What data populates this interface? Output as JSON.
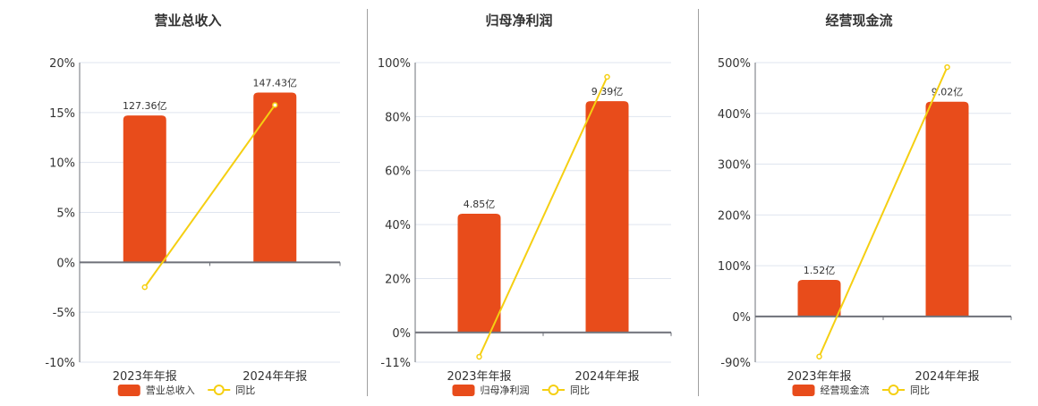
{
  "colors": {
    "bar": "#e84c1b",
    "line": "#f5cf12",
    "grid": "#dfe5ef",
    "axis": "#6e7079",
    "divider": "#a0a0a0"
  },
  "legend": {
    "line_label": "同比"
  },
  "chart_data": [
    {
      "type": "bar+line",
      "title": "营业总收入",
      "categories": [
        "2023年年报",
        "2024年年报"
      ],
      "bar_series": {
        "name": "营业总收入",
        "labels": [
          "127.36亿",
          "147.43亿"
        ],
        "values_pct_scale": [
          14.7,
          17.0
        ]
      },
      "line_series": {
        "name": "同比",
        "values": [
          -2.49,
          15.75
        ]
      },
      "yticks": [
        "20%",
        "15%",
        "10%",
        "5%",
        "0%",
        "-5%",
        "-10%"
      ],
      "ytick_values": [
        20,
        15,
        10,
        5,
        0,
        -5,
        -10
      ],
      "ylim": [
        -10,
        20
      ],
      "ylabel": "",
      "xlabel": "",
      "grid": true,
      "legend_position": "bottom"
    },
    {
      "type": "bar+line",
      "title": "归母净利润",
      "categories": [
        "2023年年报",
        "2024年年报"
      ],
      "bar_series": {
        "name": "归母净利润",
        "labels": [
          "4.85亿",
          "9.39亿"
        ],
        "values_pct_scale": [
          44.0,
          85.7
        ]
      },
      "line_series": {
        "name": "同比",
        "values": [
          -9.0,
          94.7
        ]
      },
      "yticks": [
        "100%",
        "80%",
        "60%",
        "40%",
        "20%",
        "0%",
        "-11%"
      ],
      "ytick_values": [
        100,
        80,
        60,
        40,
        20,
        0,
        -11
      ],
      "ylim": [
        -11,
        100
      ],
      "ylabel": "",
      "xlabel": "",
      "grid": true,
      "legend_position": "bottom"
    },
    {
      "type": "bar+line",
      "title": "经营现金流",
      "categories": [
        "2023年年报",
        "2024年年报"
      ],
      "bar_series": {
        "name": "经营现金流",
        "labels": [
          "1.52亿",
          "9.02亿"
        ],
        "values_pct_scale": [
          72,
          423
        ]
      },
      "line_series": {
        "name": "同比",
        "values": [
          -79,
          491
        ]
      },
      "yticks": [
        "500%",
        "400%",
        "300%",
        "200%",
        "100%",
        "0%",
        "-90%"
      ],
      "ytick_values": [
        500,
        400,
        300,
        200,
        100,
        0,
        -90
      ],
      "ylim": [
        -90,
        500
      ],
      "ylabel": "",
      "xlabel": "",
      "grid": true,
      "legend_position": "bottom"
    }
  ]
}
